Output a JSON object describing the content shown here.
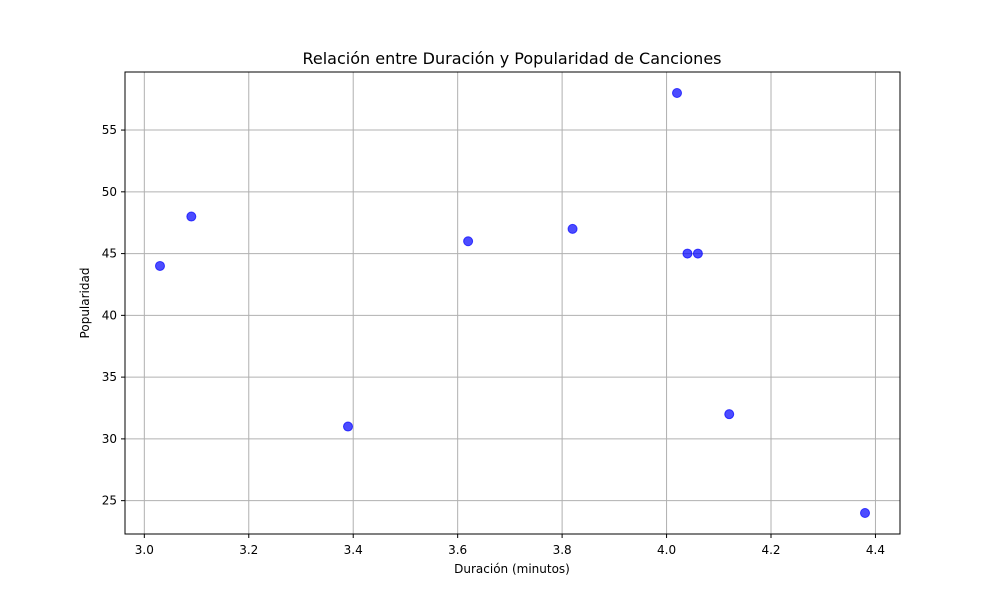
{
  "chart_data": {
    "type": "scatter",
    "title": "Relación entre Duración y Popularidad de Canciones",
    "xlabel": "Duración (minutos)",
    "ylabel": "Popularidad",
    "xlim": [
      2.963,
      4.447
    ],
    "ylim": [
      22.3,
      59.7
    ],
    "xticks": [
      3.0,
      3.2,
      3.4,
      3.6,
      3.8,
      4.0,
      4.2,
      4.4
    ],
    "yticks": [
      25,
      30,
      35,
      40,
      45,
      50,
      55
    ],
    "grid": true,
    "series": [
      {
        "color": "#0000ff",
        "points": [
          {
            "x": 3.03,
            "y": 44
          },
          {
            "x": 3.09,
            "y": 48
          },
          {
            "x": 3.39,
            "y": 31
          },
          {
            "x": 3.62,
            "y": 46
          },
          {
            "x": 3.82,
            "y": 47
          },
          {
            "x": 4.02,
            "y": 58
          },
          {
            "x": 4.04,
            "y": 45
          },
          {
            "x": 4.06,
            "y": 45
          },
          {
            "x": 4.12,
            "y": 32
          },
          {
            "x": 4.38,
            "y": 24
          }
        ]
      }
    ]
  }
}
